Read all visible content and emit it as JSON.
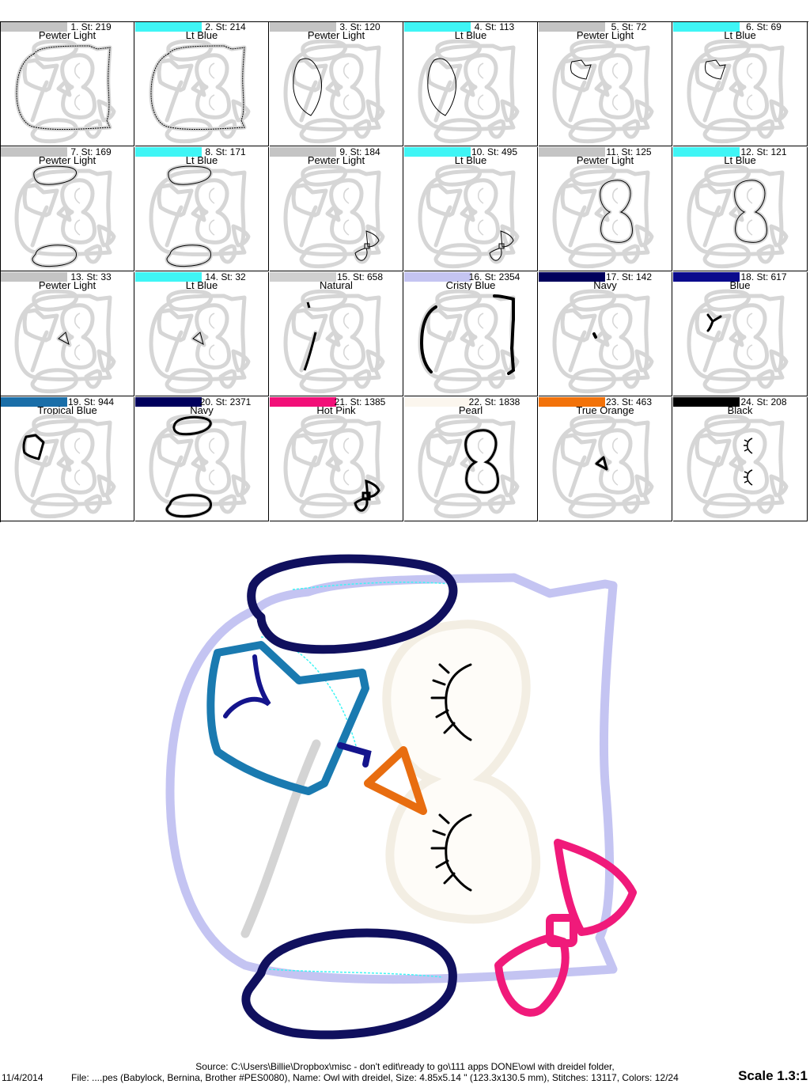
{
  "steps": [
    {
      "label": "1. St: 219",
      "color_name": "Pewter Light",
      "hex": "#c4c4c4",
      "shape": "outline1"
    },
    {
      "label": "2. St: 214",
      "color_name": "Lt Blue",
      "hex": "#3ff5f5",
      "shape": "outline1"
    },
    {
      "label": "3. St: 120",
      "color_name": "Pewter Light",
      "hex": "#c4c4c4",
      "shape": "leftface"
    },
    {
      "label": "4. St: 113",
      "color_name": "Lt Blue",
      "hex": "#3ff5f5",
      "shape": "leftface"
    },
    {
      "label": "5. St: 72",
      "color_name": "Pewter Light",
      "hex": "#c4c4c4",
      "shape": "book"
    },
    {
      "label": "6. St: 69",
      "color_name": "Lt Blue",
      "hex": "#3ff5f5",
      "shape": "book"
    },
    {
      "label": "7. St: 169",
      "color_name": "Pewter Light",
      "hex": "#c4c4c4",
      "shape": "wings"
    },
    {
      "label": "8. St: 171",
      "color_name": "Lt Blue",
      "hex": "#3ff5f5",
      "shape": "wings"
    },
    {
      "label": "9. St: 184",
      "color_name": "Pewter Light",
      "hex": "#c4c4c4",
      "shape": "bow"
    },
    {
      "label": "10. St: 495",
      "color_name": "Lt Blue",
      "hex": "#3ff5f5",
      "shape": "bow"
    },
    {
      "label": "11. St: 125",
      "color_name": "Pewter Light",
      "hex": "#c4c4c4",
      "shape": "eyes"
    },
    {
      "label": "12. St: 121",
      "color_name": "Lt Blue",
      "hex": "#3ff5f5",
      "shape": "eyes"
    },
    {
      "label": "13. St: 33",
      "color_name": "Pewter Light",
      "hex": "#c4c4c4",
      "shape": "beak"
    },
    {
      "label": "14. St: 32",
      "color_name": "Lt Blue",
      "hex": "#3ff5f5",
      "shape": "beak"
    },
    {
      "label": "15. St: 658",
      "color_name": "Natural",
      "hex": "#d0d0d0",
      "shape": "natural"
    },
    {
      "label": "16. St: 2354",
      "color_name": "Cristy Blue",
      "hex": "#c4c4f2",
      "shape": "body"
    },
    {
      "label": "17. St: 142",
      "color_name": "Navy",
      "hex": "#00005c",
      "shape": "navydot"
    },
    {
      "label": "18. St: 617",
      "color_name": "Blue",
      "hex": "#0a0a8c",
      "shape": "bluebook"
    },
    {
      "label": "19. St: 944",
      "color_name": "Tropical Blue",
      "hex": "#1a6ea8",
      "shape": "tropbook"
    },
    {
      "label": "20. St: 2371",
      "color_name": "Navy",
      "hex": "#00005c",
      "shape": "navywings"
    },
    {
      "label": "21. St: 1385",
      "color_name": "Hot Pink",
      "hex": "#f20f78",
      "shape": "pinkbow"
    },
    {
      "label": "22. St: 1838",
      "color_name": "Pearl",
      "hex": "#fbf6ee",
      "shape": "pearleyes"
    },
    {
      "label": "23. St: 463",
      "color_name": "True Orange",
      "hex": "#f2720a",
      "shape": "orangebeak"
    },
    {
      "label": "24. St: 208",
      "color_name": "Black",
      "hex": "#000000",
      "shape": "lashes"
    }
  ],
  "footer": {
    "source": "Source: C:\\Users\\Billie\\Dropbox\\misc - don't edit\\ready to go\\111 apps DONE\\owl with dreidel folder,",
    "date": "11/4/2014",
    "file_info": "File: ....pes (Babylock, Bernina, Brother #PES0080), Name: Owl with dreidel, Size: 4.85x5.14 \" (123.3x130.5 mm), Stitches: 13117, Colors: 12/24",
    "scale": "Scale 1.3:1"
  }
}
